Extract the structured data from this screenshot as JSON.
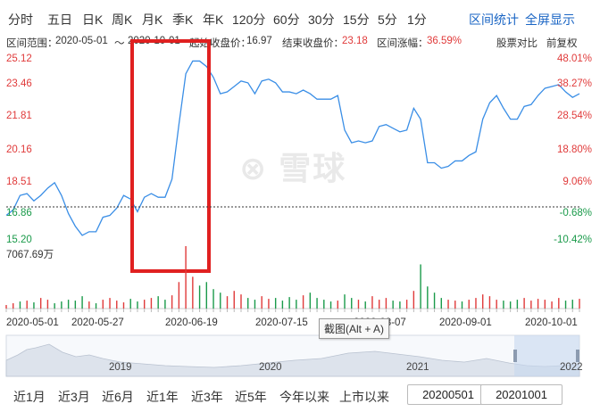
{
  "period_tabs": [
    {
      "label": "分时"
    },
    {
      "label": "五日"
    },
    {
      "label": "日K"
    },
    {
      "label": "周K"
    },
    {
      "label": "月K"
    },
    {
      "label": "季K"
    },
    {
      "label": "年K"
    },
    {
      "label": "120分"
    },
    {
      "label": "60分"
    },
    {
      "label": "30分"
    },
    {
      "label": "15分"
    },
    {
      "label": "5分"
    },
    {
      "label": "1分"
    }
  ],
  "header_actions": {
    "interval_stats": "区间统计",
    "fullscreen": "全屏显示"
  },
  "range_info": {
    "range_label": "区间范围：",
    "range_start": "2020-05-01",
    "range_sep": "～",
    "range_end": "2020-10-01",
    "start_close_label": "起始收盘价：",
    "start_close": "16.97",
    "end_close_label": "结束收盘价：",
    "end_close": "23.18",
    "change_label": "区间涨幅：",
    "change": "36.59%"
  },
  "right_controls": {
    "compare": "股票对比",
    "adjust": "前复权"
  },
  "y_axis_left": [
    "25.12",
    "23.46",
    "21.81",
    "20.16",
    "18.51",
    "16.86",
    "15.20"
  ],
  "y_axis_right": [
    "48.01%",
    "38.27%",
    "28.54%",
    "18.80%",
    "9.06%",
    "-0.68%",
    "-10.42%"
  ],
  "volume_label": "7067.69万",
  "x_axis": [
    "2020-05-01",
    "2020-05-27",
    "2020-06-19",
    "2020-07-15",
    "2020-08-07",
    "2020-09-01",
    "2020-10-01"
  ],
  "navigator_years": [
    "2019",
    "2020",
    "2021",
    "2022"
  ],
  "tooltip": "截图(Alt + A)",
  "watermark": "雪球",
  "quick_ranges": [
    {
      "label": "近1月"
    },
    {
      "label": "近3月"
    },
    {
      "label": "近6月"
    },
    {
      "label": "近1年"
    },
    {
      "label": "近3年"
    },
    {
      "label": "近5年"
    },
    {
      "label": "今年以来"
    },
    {
      "label": "上市以来"
    }
  ],
  "date_from": "20200501",
  "date_to": "20201001",
  "colors": {
    "line": "#3a8ee6",
    "up": "#e03a3a",
    "down": "#1a9a4a",
    "highlight_box": "#e02020",
    "link": "#1a65c4"
  },
  "chart_data": {
    "type": "line",
    "series": [
      {
        "values": [
          16.5,
          16.8,
          17.6,
          17.7,
          17.3,
          17.6,
          18.0,
          18.3,
          17.6,
          16.6,
          15.9,
          15.4,
          15.6,
          15.6,
          16.4,
          16.5,
          16.9,
          17.6,
          17.4,
          16.7,
          17.5,
          17.7,
          17.5,
          17.5,
          18.5,
          21.5,
          24.3,
          25.0,
          25.0,
          24.7,
          24.1,
          23.2,
          23.3,
          23.6,
          23.9,
          23.8,
          23.2,
          23.9,
          24.0,
          23.8,
          23.3,
          23.3,
          23.2,
          23.4,
          23.2,
          22.9,
          22.9,
          22.9,
          23.1,
          21.2,
          20.5,
          20.6,
          20.5,
          20.6,
          21.4,
          21.5,
          21.3,
          21.1,
          21.2,
          22.4,
          21.8,
          19.4,
          19.4,
          19.1,
          19.2,
          19.5,
          19.5,
          19.8,
          20.0,
          21.8,
          22.7,
          23.1,
          22.4,
          21.8,
          21.8,
          22.5,
          22.6,
          23.1,
          23.5,
          23.6,
          23.7,
          23.3,
          23.0,
          23.2
        ]
      }
    ],
    "ylim": [
      15.2,
      25.12
    ],
    "volume": [
      4,
      6,
      8,
      9,
      7,
      12,
      10,
      6,
      8,
      10,
      9,
      14,
      8,
      6,
      10,
      12,
      9,
      7,
      11,
      8,
      10,
      12,
      14,
      10,
      15,
      30,
      71,
      36,
      26,
      30,
      22,
      18,
      14,
      20,
      16,
      12,
      10,
      14,
      11,
      12,
      9,
      13,
      10,
      15,
      18,
      12,
      10,
      8,
      9,
      16,
      12,
      10,
      8,
      14,
      10,
      12,
      9,
      8,
      10,
      20,
      50,
      25,
      18,
      12,
      10,
      9,
      8,
      10,
      12,
      16,
      14,
      10,
      9,
      8,
      10,
      12,
      9,
      11,
      10,
      8,
      12,
      9,
      10,
      11
    ],
    "volume_max": 70.68,
    "volume_up_mask": [
      1,
      1,
      0,
      1,
      0,
      1,
      1,
      0,
      0,
      0,
      0,
      0,
      1,
      0,
      1,
      1,
      1,
      1,
      0,
      0,
      1,
      1,
      0,
      0,
      1,
      1,
      1,
      1,
      0,
      0,
      0,
      0,
      1,
      1,
      1,
      0,
      0,
      1,
      1,
      0,
      0,
      0,
      0,
      1,
      0,
      0,
      0,
      0,
      1,
      0,
      0,
      1,
      0,
      1,
      1,
      1,
      0,
      0,
      1,
      1,
      0,
      0,
      0,
      0,
      1,
      1,
      0,
      1,
      1,
      1,
      1,
      1,
      0,
      0,
      0,
      1,
      1,
      1,
      1,
      1,
      1,
      0,
      0,
      1
    ]
  }
}
